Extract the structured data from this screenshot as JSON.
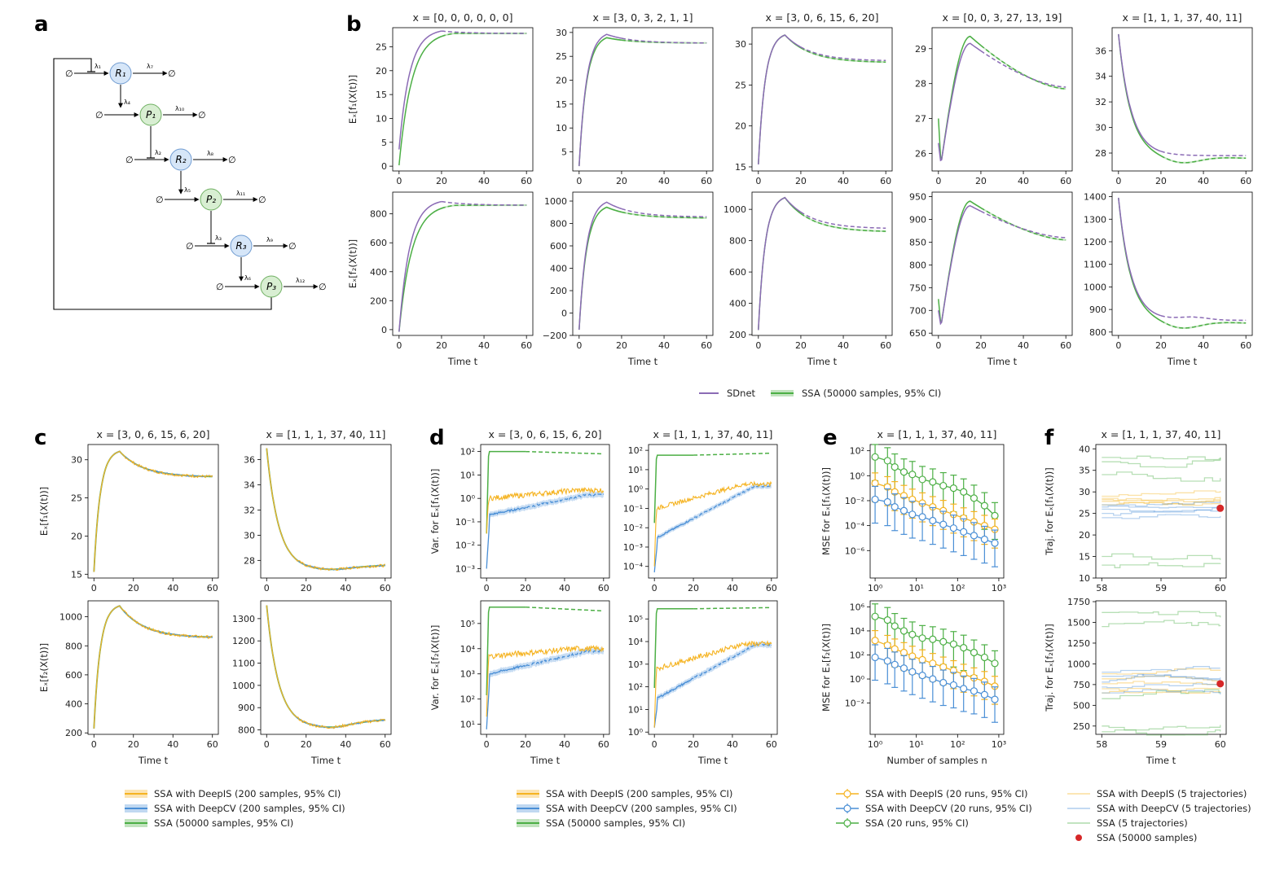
{
  "colors": {
    "sdnet": "#8b6bb5",
    "ssa": "#4caf45",
    "deepis": "#f5b321",
    "deepcv": "#4a8fd6",
    "ssa_point": "#d62728"
  },
  "panel_letters": {
    "a": "a",
    "b": "b",
    "c": "c",
    "d": "d",
    "e": "e",
    "f": "f"
  },
  "network": {
    "nodes": [
      {
        "id": "R1",
        "label": "R₁",
        "kind": "mrna"
      },
      {
        "id": "P1",
        "label": "P₁",
        "kind": "protein"
      },
      {
        "id": "R2",
        "label": "R₂",
        "kind": "mrna"
      },
      {
        "id": "P2",
        "label": "P₂",
        "kind": "protein"
      },
      {
        "id": "R3",
        "label": "R₃",
        "kind": "mrna"
      },
      {
        "id": "P3",
        "label": "P₃",
        "kind": "protein"
      }
    ],
    "rates": [
      "λ₁",
      "λ₂",
      "λ₃",
      "λ₄",
      "λ₅",
      "λ₆",
      "λ₇",
      "λ₈",
      "λ₉",
      "λ₁₀",
      "λ₁₁",
      "λ₁₂"
    ],
    "empty_set": "∅"
  },
  "chart_data": {
    "panel_b": {
      "type": "line",
      "xlabel": "Time t",
      "ylabels": [
        "Eₓ[f₁(X(t))]",
        "Eₓ[f₂(X(t))]"
      ],
      "titles": [
        "x = [0, 0, 0, 0, 0, 0]",
        "x = [3, 0, 3, 2, 1, 1]",
        "x = [3, 0, 6, 15, 6, 20]",
        "x = [0, 0, 3, 27, 13, 19]",
        "x = [1, 1, 1, 37, 40, 11]"
      ],
      "xticks": [
        0,
        20,
        40,
        60
      ],
      "legend": [
        "SDnet",
        "SSA (50000 samples, 95% CI)"
      ],
      "subplots": [
        {
          "row": 0,
          "col": 0,
          "ylim": [
            -1,
            29
          ],
          "yticks": [
            0,
            5,
            10,
            15,
            20,
            25
          ],
          "y0": 3.5,
          "y0b": 0.2,
          "peak": 28.3,
          "tp": 20,
          "final": 27.8,
          "final2": 27.7,
          "ssa_peak": 27.8,
          "tau": 5,
          "tau2": 6
        },
        {
          "row": 0,
          "col": 1,
          "ylim": [
            1,
            31
          ],
          "yticks": [
            5,
            10,
            15,
            20,
            25,
            30
          ],
          "y0": 2.0,
          "peak": 29.6,
          "tp": 13,
          "final": 27.8,
          "ssa_peak": 28.9,
          "tau": 3.5
        },
        {
          "row": 0,
          "col": 2,
          "ylim": [
            14.5,
            32
          ],
          "yticks": [
            15,
            20,
            25,
            30
          ],
          "y0": 15.3,
          "peak": 31.1,
          "tp": 12.5,
          "final": 28.0,
          "final2": 27.8,
          "ssa_peak": 31.1,
          "tau": 3.2
        },
        {
          "row": 0,
          "col": 3,
          "ylim": [
            25.5,
            29.6
          ],
          "yticks": [
            26,
            27,
            28,
            29
          ],
          "y0": 26.3,
          "y0b": 27.0,
          "dip": 25.7,
          "peak": 29.15,
          "ssa_peak": 29.35,
          "tp": 15,
          "final": 27.9,
          "final2": 27.85,
          "tau": 4
        },
        {
          "row": 0,
          "col": 4,
          "ylim": [
            26.6,
            37.8
          ],
          "yticks": [
            28,
            30,
            32,
            34,
            36
          ],
          "y0": 37.3,
          "final": 27.8,
          "min2": 27.2,
          "final2": 27.6,
          "tau": 6
        },
        {
          "row": 1,
          "col": 0,
          "ylim": [
            -40,
            950
          ],
          "yticks": [
            0,
            200,
            400,
            600,
            800
          ],
          "y0": -15,
          "peak": 885,
          "tp": 20,
          "final": 860,
          "ssa_peak": 858,
          "tau": 5,
          "tau2": 6
        },
        {
          "row": 1,
          "col": 1,
          "ylim": [
            -200,
            1080
          ],
          "yticks": [
            -200,
            0,
            200,
            400,
            600,
            800,
            1000
          ],
          "y0": -150,
          "peak": 990,
          "tp": 13,
          "final": 860,
          "final2": 850,
          "ssa_peak": 945,
          "tau": 3.5
        },
        {
          "row": 1,
          "col": 2,
          "ylim": [
            195,
            1110
          ],
          "yticks": [
            200,
            400,
            600,
            800,
            1000
          ],
          "y0": 230,
          "peak": 1075,
          "tp": 12.5,
          "final": 880,
          "final2": 860,
          "ssa_peak": 1075,
          "tau": 3.2
        },
        {
          "row": 1,
          "col": 3,
          "ylim": [
            645,
            960
          ],
          "yticks": [
            650,
            700,
            750,
            800,
            850,
            900,
            950
          ],
          "y0": 700,
          "y0b": 725,
          "dip": 665,
          "peak": 930,
          "ssa_peak": 940,
          "tp": 15,
          "final": 860,
          "final2": 855,
          "tau": 4
        },
        {
          "row": 1,
          "col": 4,
          "ylim": [
            785,
            1420
          ],
          "yticks": [
            800,
            900,
            1000,
            1100,
            1200,
            1300,
            1400
          ],
          "y0": 1395,
          "final": 852,
          "bump": 865,
          "min2": 815,
          "final2": 840,
          "tau": 6
        }
      ]
    },
    "panel_c": {
      "type": "line",
      "xlabel": "Time t",
      "ylabels": [
        "Eₓ[f₁(X(t))]",
        "Eₓ[f₂(X(t))]"
      ],
      "titles": [
        "x = [3, 0, 6, 15, 6, 20]",
        "x = [1, 1, 1, 37, 40, 11]"
      ],
      "xticks": [
        0,
        20,
        40,
        60
      ],
      "subplots": [
        {
          "row": 0,
          "col": 0,
          "ylim": [
            14.5,
            32
          ],
          "yticks": [
            15,
            20,
            25,
            30
          ],
          "kind": "rise",
          "y0": 15.3,
          "peak": 31.1,
          "tp": 13,
          "final": 27.8,
          "tau": 3.2
        },
        {
          "row": 0,
          "col": 1,
          "ylim": [
            26.6,
            37.2
          ],
          "yticks": [
            28,
            30,
            32,
            34,
            36
          ],
          "kind": "decay",
          "y0": 36.9,
          "final": 27.3,
          "final2": 27.6,
          "tau": 6
        },
        {
          "row": 1,
          "col": 0,
          "ylim": [
            190,
            1110
          ],
          "yticks": [
            200,
            400,
            600,
            800,
            1000
          ],
          "kind": "rise",
          "y0": 230,
          "peak": 1075,
          "tp": 13,
          "final": 860,
          "tau": 3.2
        },
        {
          "row": 1,
          "col": 1,
          "ylim": [
            780,
            1380
          ],
          "yticks": [
            800,
            900,
            1000,
            1100,
            1200,
            1300
          ],
          "kind": "decay",
          "y0": 1360,
          "final": 815,
          "final2": 845,
          "tau": 6
        }
      ]
    },
    "panel_d": {
      "type": "line",
      "scale": "log",
      "xlabel": "Time t",
      "ylabels": [
        "Var. for Eₓ[f₁(X(t))]",
        "Var. for Eₓ[f₂(X(t))]"
      ],
      "titles": [
        "x = [3, 0, 6, 15, 6, 20]",
        "x = [1, 1, 1, 37, 40, 11]"
      ],
      "xticks": [
        0,
        20,
        40,
        60
      ],
      "subplots": [
        {
          "row": 0,
          "col": 0,
          "ylim_exp": [
            -3.4,
            2.3
          ],
          "yticks_exp": [
            -3,
            -2,
            -1,
            0,
            1,
            2
          ],
          "ssa": [
            2.0,
            1.9
          ],
          "is": [
            -1.5,
            0.0,
            0.35
          ],
          "cv": [
            -3,
            -0.7,
            0.15
          ]
        },
        {
          "row": 0,
          "col": 1,
          "ylim_exp": [
            -4.6,
            2.3
          ],
          "yticks_exp": [
            -4,
            -3,
            -2,
            -1,
            0,
            1,
            2
          ],
          "ssa": [
            1.75,
            1.85
          ],
          "is": [
            -4,
            -1.0,
            0.25
          ],
          "cv": [
            -4.3,
            -2.5,
            0.15
          ]
        },
        {
          "row": 1,
          "col": 0,
          "ylim_exp": [
            0.6,
            5.9
          ],
          "yticks_exp": [
            1,
            2,
            3,
            4,
            5
          ],
          "ssa": [
            5.65,
            5.5
          ],
          "is": [
            1.3,
            3.7,
            4.0
          ],
          "cv": [
            0.8,
            3.0,
            3.9
          ]
        },
        {
          "row": 1,
          "col": 1,
          "ylim_exp": [
            -0.1,
            5.8
          ],
          "yticks_exp": [
            0,
            1,
            2,
            3,
            4,
            5
          ],
          "ssa": [
            5.45,
            5.5
          ],
          "is": [
            0.2,
            2.8,
            3.9
          ],
          "cv": [
            0.2,
            1.5,
            3.85
          ]
        }
      ]
    },
    "panel_e": {
      "type": "line",
      "scale": "loglog",
      "xlabel": "Number of samples n",
      "ylabels": [
        "MSE for Eₓ[f₁(X(t))]",
        "MSE for Eₓ[f₂(X(t))]"
      ],
      "title": "x = [1, 1, 1, 37, 40, 11]",
      "xticks_exp": [
        0,
        1,
        2,
        3
      ],
      "n": [
        1,
        2,
        3,
        5,
        8,
        14,
        25,
        45,
        80,
        140,
        250,
        450,
        800
      ],
      "subplots": [
        {
          "row": 0,
          "ylim_exp": [
            -8.2,
            2.5
          ],
          "yticks_exp": [
            -6,
            -4,
            -2,
            0,
            2
          ],
          "ssa": [
            1.5,
            1.2,
            0.7,
            0.3,
            0.1,
            -0.3,
            -0.5,
            -0.8,
            -1.0,
            -1.3,
            -1.8,
            -2.4,
            -3.2
          ],
          "is": [
            -0.6,
            -0.9,
            -1.3,
            -1.6,
            -1.9,
            -2.2,
            -2.5,
            -2.8,
            -3.1,
            -3.4,
            -3.7,
            -4.0,
            -4.3
          ],
          "cv": [
            -1.9,
            -2.1,
            -2.5,
            -2.8,
            -3.1,
            -3.3,
            -3.6,
            -3.9,
            -4.2,
            -4.5,
            -4.8,
            -5.1,
            -5.4
          ]
        },
        {
          "row": 1,
          "ylim_exp": [
            -4.6,
            6.5
          ],
          "yticks_exp": [
            -2,
            0,
            2,
            4,
            6
          ],
          "ssa": [
            5.2,
            4.9,
            4.4,
            4.0,
            3.7,
            3.4,
            3.3,
            3.1,
            2.9,
            2.6,
            2.2,
            1.8,
            1.3
          ],
          "is": [
            3.2,
            2.8,
            2.5,
            2.2,
            1.9,
            1.6,
            1.3,
            1.0,
            0.7,
            0.4,
            0.1,
            -0.2,
            -0.6
          ],
          "cv": [
            1.8,
            1.5,
            1.2,
            0.9,
            0.6,
            0.3,
            0.0,
            -0.3,
            -0.5,
            -0.8,
            -1.0,
            -1.3,
            -1.7
          ]
        }
      ]
    },
    "panel_f": {
      "type": "line",
      "xlabel": "Time t",
      "ylabels": [
        "Traj. for Eₓ[f₁(X(t))]",
        "Traj. for Eₓ[f₂(X(t))]"
      ],
      "title": "x = [1, 1, 1, 37, 40, 11]",
      "xticks": [
        58,
        59,
        60
      ],
      "subplots": [
        {
          "row": 0,
          "ylim": [
            10,
            41
          ],
          "yticks": [
            10,
            15,
            20,
            25,
            30,
            35,
            40
          ],
          "point": 26.2,
          "ssa_levels": [
            38,
            37,
            34,
            15,
            13
          ],
          "is_levels": [
            28.5,
            27.8,
            29,
            27,
            28.2
          ],
          "cv_levels": [
            24,
            26.5,
            25,
            27,
            26
          ]
        },
        {
          "row": 1,
          "ylim": [
            150,
            1760
          ],
          "yticks": [
            250,
            500,
            750,
            1000,
            1250,
            1500,
            1750
          ],
          "point": 760,
          "ssa_levels": [
            1620,
            1450,
            580,
            250,
            180
          ],
          "is_levels": [
            820,
            700,
            880,
            760,
            650
          ],
          "cv_levels": [
            900,
            780,
            650,
            850,
            720
          ]
        }
      ]
    },
    "legends": {
      "b": [
        "SDnet",
        "SSA (50000 samples, 95% CI)"
      ],
      "c": [
        "SSA with DeepIS (200 samples, 95% CI)",
        "SSA with DeepCV (200 samples, 95% CI)",
        "SSA (50000 samples, 95% CI)"
      ],
      "d": [
        "SSA with DeepIS (200 samples, 95% CI)",
        "SSA with DeepCV (200 samples, 95% CI)",
        "SSA (50000 samples, 95% CI)"
      ],
      "e": [
        "SSA with DeepIS (20 runs, 95% CI)",
        "SSA with DeepCV (20 runs, 95% CI)",
        "SSA (20 runs, 95% CI)"
      ],
      "f": [
        "SSA with DeepIS (5 trajectories)",
        "SSA with DeepCV (5 trajectories)",
        "SSA (5 trajectories)",
        "SSA (50000 samples)"
      ]
    }
  }
}
